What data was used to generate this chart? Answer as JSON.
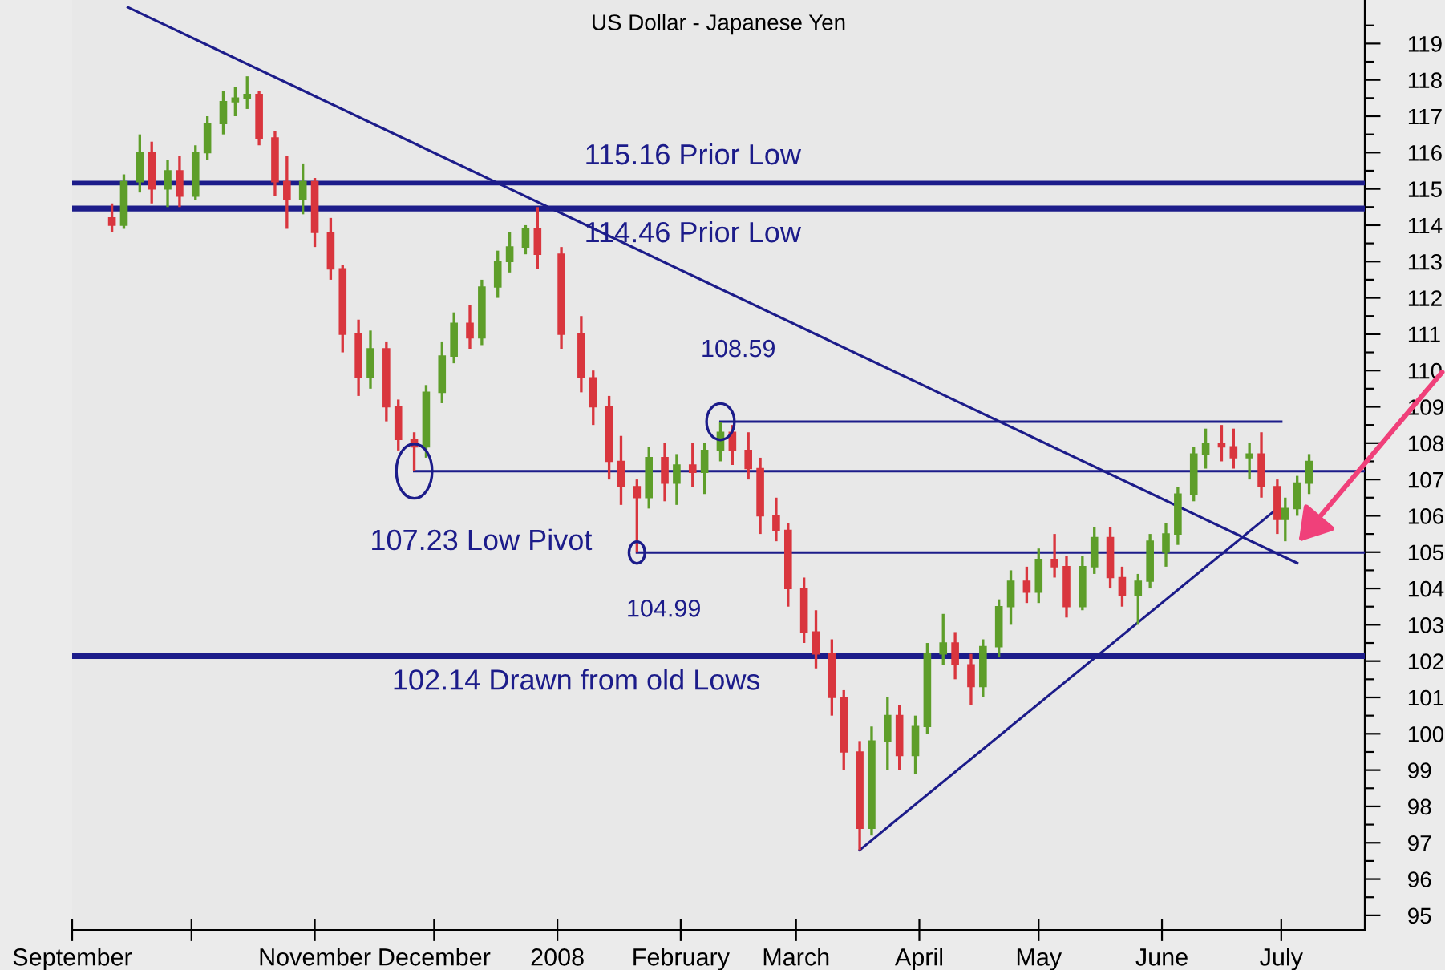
{
  "chart_data": {
    "type": "candlestick",
    "title": "US Dollar - Japanese Yen",
    "x": [
      "2007-09-11",
      "2007-09-14",
      "2007-09-18",
      "2007-09-21",
      "2007-09-25",
      "2007-09-28",
      "2007-10-02",
      "2007-10-05",
      "2007-10-09",
      "2007-10-12",
      "2007-10-15",
      "2007-10-18",
      "2007-10-22",
      "2007-10-25",
      "2007-10-29",
      "2007-11-01",
      "2007-11-05",
      "2007-11-08",
      "2007-11-12",
      "2007-11-15",
      "2007-11-19",
      "2007-11-22",
      "2007-11-26",
      "2007-11-29",
      "2007-12-03",
      "2007-12-06",
      "2007-12-10",
      "2007-12-13",
      "2007-12-17",
      "2007-12-20",
      "2007-12-24",
      "2007-12-27",
      "2008-01-02",
      "2008-01-07",
      "2008-01-10",
      "2008-01-14",
      "2008-01-17",
      "2008-01-21",
      "2008-01-24",
      "2008-01-28",
      "2008-01-31",
      "2008-02-04",
      "2008-02-07",
      "2008-02-11",
      "2008-02-14",
      "2008-02-18",
      "2008-02-21",
      "2008-02-25",
      "2008-02-28",
      "2008-03-03",
      "2008-03-06",
      "2008-03-10",
      "2008-03-13",
      "2008-03-17",
      "2008-03-20",
      "2008-03-24",
      "2008-03-27",
      "2008-03-31",
      "2008-04-03",
      "2008-04-07",
      "2008-04-10",
      "2008-04-14",
      "2008-04-17",
      "2008-04-21",
      "2008-04-24",
      "2008-04-28",
      "2008-05-01",
      "2008-05-05",
      "2008-05-08",
      "2008-05-12",
      "2008-05-15",
      "2008-05-19",
      "2008-05-22",
      "2008-05-26",
      "2008-05-29",
      "2008-06-02",
      "2008-06-05",
      "2008-06-09",
      "2008-06-12",
      "2008-06-16",
      "2008-06-19",
      "2008-06-23",
      "2008-06-26",
      "2008-06-30",
      "2008-07-02",
      "2008-07-05",
      "2008-07-08"
    ],
    "ohlc": [
      [
        114.2,
        114.6,
        113.8,
        114.0
      ],
      [
        114.0,
        115.4,
        113.9,
        115.2
      ],
      [
        115.2,
        116.5,
        114.9,
        116.0
      ],
      [
        116.0,
        116.3,
        114.6,
        115.0
      ],
      [
        115.0,
        115.8,
        114.5,
        115.5
      ],
      [
        115.5,
        115.9,
        114.5,
        114.8
      ],
      [
        114.8,
        116.2,
        114.7,
        116.0
      ],
      [
        116.0,
        117.0,
        115.8,
        116.8
      ],
      [
        116.8,
        117.7,
        116.5,
        117.4
      ],
      [
        117.4,
        117.8,
        117.0,
        117.5
      ],
      [
        117.5,
        118.1,
        117.2,
        117.6
      ],
      [
        117.6,
        117.7,
        116.2,
        116.4
      ],
      [
        116.4,
        116.6,
        114.8,
        115.2
      ],
      [
        115.2,
        115.9,
        113.9,
        114.7
      ],
      [
        114.7,
        115.7,
        114.3,
        115.2
      ],
      [
        115.2,
        115.3,
        113.4,
        113.8
      ],
      [
        113.8,
        114.2,
        112.5,
        112.8
      ],
      [
        112.8,
        112.9,
        110.5,
        111.0
      ],
      [
        111.0,
        111.4,
        109.3,
        109.8
      ],
      [
        109.8,
        111.1,
        109.5,
        110.6
      ],
      [
        110.6,
        110.8,
        108.6,
        109.0
      ],
      [
        109.0,
        109.2,
        107.8,
        108.1
      ],
      [
        108.1,
        108.3,
        107.23,
        107.9
      ],
      [
        107.9,
        109.6,
        107.6,
        109.4
      ],
      [
        109.4,
        110.8,
        109.1,
        110.4
      ],
      [
        110.4,
        111.6,
        110.2,
        111.3
      ],
      [
        111.3,
        111.8,
        110.6,
        110.9
      ],
      [
        110.9,
        112.5,
        110.7,
        112.3
      ],
      [
        112.3,
        113.3,
        112.0,
        113.0
      ],
      [
        113.0,
        113.8,
        112.7,
        113.4
      ],
      [
        113.4,
        114.0,
        113.2,
        113.9
      ],
      [
        113.9,
        114.5,
        112.8,
        113.2
      ],
      [
        113.2,
        113.4,
        110.6,
        111.0
      ],
      [
        111.0,
        111.5,
        109.4,
        109.8
      ],
      [
        109.8,
        110.0,
        108.5,
        109.0
      ],
      [
        109.0,
        109.3,
        107.0,
        107.5
      ],
      [
        107.5,
        108.2,
        106.3,
        106.8
      ],
      [
        106.8,
        107.0,
        104.99,
        106.5
      ],
      [
        106.5,
        107.9,
        106.2,
        107.6
      ],
      [
        107.6,
        108.0,
        106.4,
        106.9
      ],
      [
        106.9,
        107.7,
        106.3,
        107.4
      ],
      [
        107.4,
        108.0,
        106.8,
        107.2
      ],
      [
        107.2,
        108.0,
        106.6,
        107.8
      ],
      [
        107.8,
        108.59,
        107.5,
        108.3
      ],
      [
        108.3,
        108.5,
        107.4,
        107.8
      ],
      [
        107.8,
        108.3,
        107.0,
        107.3
      ],
      [
        107.3,
        107.6,
        105.5,
        106.0
      ],
      [
        106.0,
        106.5,
        105.3,
        105.6
      ],
      [
        105.6,
        105.8,
        103.5,
        104.0
      ],
      [
        104.0,
        104.3,
        102.5,
        102.8
      ],
      [
        102.8,
        103.4,
        101.8,
        102.2
      ],
      [
        102.2,
        102.6,
        100.5,
        101.0
      ],
      [
        101.0,
        101.2,
        99.0,
        99.5
      ],
      [
        99.5,
        99.8,
        96.8,
        97.4
      ],
      [
        97.4,
        100.2,
        97.2,
        99.8
      ],
      [
        99.8,
        101.0,
        99.0,
        100.5
      ],
      [
        100.5,
        100.8,
        99.0,
        99.4
      ],
      [
        99.4,
        100.5,
        98.9,
        100.2
      ],
      [
        100.2,
        102.5,
        100.0,
        102.2
      ],
      [
        102.2,
        103.3,
        101.9,
        102.5
      ],
      [
        102.5,
        102.8,
        101.5,
        101.9
      ],
      [
        101.9,
        102.2,
        100.8,
        101.3
      ],
      [
        101.3,
        102.6,
        101.0,
        102.4
      ],
      [
        102.4,
        103.7,
        102.1,
        103.5
      ],
      [
        103.5,
        104.5,
        103.0,
        104.2
      ],
      [
        104.2,
        104.6,
        103.6,
        103.9
      ],
      [
        103.9,
        105.1,
        103.6,
        104.8
      ],
      [
        104.8,
        105.5,
        104.3,
        104.6
      ],
      [
        104.6,
        104.9,
        103.2,
        103.5
      ],
      [
        103.5,
        104.9,
        103.4,
        104.6
      ],
      [
        104.6,
        105.7,
        104.4,
        105.4
      ],
      [
        105.4,
        105.7,
        104.0,
        104.3
      ],
      [
        104.3,
        104.6,
        103.5,
        103.8
      ],
      [
        103.8,
        104.4,
        103.0,
        104.2
      ],
      [
        104.2,
        105.5,
        104.0,
        105.3
      ],
      [
        105.0,
        105.8,
        104.6,
        105.5
      ],
      [
        105.5,
        106.8,
        105.2,
        106.6
      ],
      [
        106.6,
        107.9,
        106.4,
        107.7
      ],
      [
        107.7,
        108.4,
        107.3,
        108.0
      ],
      [
        108.0,
        108.5,
        107.5,
        107.9
      ],
      [
        107.9,
        108.4,
        107.3,
        107.6
      ],
      [
        107.6,
        108.0,
        107.0,
        107.7
      ],
      [
        107.7,
        108.3,
        106.5,
        106.8
      ],
      [
        106.8,
        107.0,
        105.5,
        105.9
      ],
      [
        105.9,
        106.5,
        105.3,
        106.2
      ],
      [
        106.2,
        107.1,
        106.0,
        106.9
      ],
      [
        106.9,
        107.7,
        106.6,
        107.5
      ]
    ],
    "colors": [
      "#d9363e",
      "#5e9e2a",
      "#5e9e2a",
      "#d9363e",
      "#5e9e2a",
      "#d9363e",
      "#5e9e2a",
      "#5e9e2a",
      "#5e9e2a",
      "#5e9e2a",
      "#5e9e2a",
      "#d9363e",
      "#d9363e",
      "#d9363e",
      "#5e9e2a",
      "#d9363e",
      "#d9363e",
      "#d9363e",
      "#d9363e",
      "#5e9e2a",
      "#d9363e",
      "#d9363e",
      "#d9363e",
      "#5e9e2a",
      "#5e9e2a",
      "#5e9e2a",
      "#d9363e",
      "#5e9e2a",
      "#5e9e2a",
      "#5e9e2a",
      "#5e9e2a",
      "#d9363e",
      "#d9363e",
      "#d9363e",
      "#d9363e",
      "#d9363e",
      "#d9363e",
      "#d9363e",
      "#5e9e2a",
      "#d9363e",
      "#5e9e2a",
      "#d9363e",
      "#5e9e2a",
      "#5e9e2a",
      "#d9363e",
      "#d9363e",
      "#d9363e",
      "#d9363e",
      "#d9363e",
      "#d9363e",
      "#d9363e",
      "#d9363e",
      "#d9363e",
      "#d9363e",
      "#5e9e2a",
      "#5e9e2a",
      "#d9363e",
      "#5e9e2a",
      "#5e9e2a",
      "#5e9e2a",
      "#d9363e",
      "#d9363e",
      "#5e9e2a",
      "#5e9e2a",
      "#5e9e2a",
      "#d9363e",
      "#5e9e2a",
      "#d9363e",
      "#d9363e",
      "#5e9e2a",
      "#5e9e2a",
      "#d9363e",
      "#d9363e",
      "#5e9e2a",
      "#5e9e2a",
      "#5e9e2a",
      "#5e9e2a",
      "#5e9e2a",
      "#5e9e2a",
      "#d9363e",
      "#d9363e",
      "#5e9e2a",
      "#d9363e",
      "#d9363e",
      "#5e9e2a",
      "#5e9e2a",
      "#5e9e2a"
    ],
    "series": [
      {
        "type": "line",
        "color": "#1c1c8a",
        "x": [
          "2007-09-15",
          "2008-07-05"
        ],
        "values": [
          120.0,
          104.7
        ]
      },
      {
        "type": "line",
        "color": "#1c1c8a",
        "x": [
          "2008-03-17",
          "2008-06-30"
        ],
        "values": [
          96.8,
          106.2
        ]
      },
      {
        "type": "line",
        "color": "#1c1c8a",
        "x": [
          "2007-11-26",
          "2008-07-22"
        ],
        "values": [
          107.23,
          107.23
        ]
      },
      {
        "type": "line",
        "color": "#1c1c8a",
        "x": [
          "2008-02-11",
          "2008-07-01"
        ],
        "values": [
          108.59,
          108.59
        ]
      },
      {
        "type": "line",
        "color": "#1c1c8a",
        "x": [
          "2008-01-21",
          "2008-07-22"
        ],
        "values": [
          104.99,
          104.99
        ]
      }
    ],
    "ref_lines": [
      {
        "axis": "y",
        "value": 115.16,
        "label": "115.16 Prior Low",
        "color": "#1c1c8a"
      },
      {
        "axis": "y",
        "value": 114.46,
        "label": "114.46 Prior Low",
        "color": "#1c1c8a"
      },
      {
        "axis": "y",
        "value": 102.14,
        "label": "102.14 Drawn from old Lows",
        "color": "#1c1c8a"
      }
    ],
    "annotations": [
      {
        "text": "107.23 Low Pivot",
        "x": "2007-11-26",
        "y": 107.23
      },
      {
        "text": "108.59",
        "x": "2008-02-11",
        "y": 108.59
      },
      {
        "text": "104.99",
        "x": "2008-01-21",
        "y": 104.99
      }
    ],
    "xlim": [
      "2007-09-01",
      "2008-07-22"
    ],
    "xticks": [
      {
        "value": "2007-09-01",
        "label": "September"
      },
      {
        "value": "2007-10-01",
        "label": null
      },
      {
        "value": "2007-11-01",
        "label": "November"
      },
      {
        "value": "2007-12-01",
        "label": "December"
      },
      {
        "value": "2008-01-01",
        "label": "2008"
      },
      {
        "value": "2008-02-01",
        "label": "February"
      },
      {
        "value": "2008-03-01",
        "label": "March"
      },
      {
        "value": "2008-04-01",
        "label": "April"
      },
      {
        "value": "2008-05-01",
        "label": "May"
      },
      {
        "value": "2008-06-01",
        "label": "June"
      },
      {
        "value": "2008-07-01",
        "label": "July"
      }
    ],
    "ylim": [
      94.6,
      120.2
    ],
    "yticks": [
      95,
      {
        "value": 95.5,
        "label": null
      },
      96,
      {
        "value": 96.5,
        "label": null
      },
      97,
      {
        "value": 97.5,
        "label": null
      },
      98,
      {
        "value": 98.5,
        "label": null
      },
      99,
      {
        "value": 99.5,
        "label": null
      },
      100,
      {
        "value": 100.5,
        "label": null
      },
      101,
      {
        "value": 101.5,
        "label": null
      },
      102,
      {
        "value": 102.5,
        "label": null
      },
      103,
      {
        "value": 103.5,
        "label": null
      },
      104,
      {
        "value": 104.5,
        "label": null
      },
      105,
      {
        "value": 105.5,
        "label": null
      },
      106,
      {
        "value": 106.5,
        "label": null
      },
      107,
      {
        "value": 107.5,
        "label": null
      },
      108,
      {
        "value": 108.5,
        "label": null
      },
      109,
      {
        "value": 109.5,
        "label": null
      },
      110,
      {
        "value": 110.5,
        "label": null
      },
      111,
      {
        "value": 111.5,
        "label": null
      },
      112,
      {
        "value": 112.5,
        "label": null
      },
      113,
      {
        "value": 113.5,
        "label": null
      },
      114,
      {
        "value": 114.5,
        "label": null
      },
      115,
      {
        "value": 115.5,
        "label": null
      },
      116,
      {
        "value": 116.5,
        "label": null
      },
      117,
      {
        "value": 117.5,
        "label": null
      },
      118,
      {
        "value": 118.5,
        "label": null
      },
      119,
      {
        "value": 119.5,
        "label": null
      }
    ],
    "grid": false,
    "legend": false
  }
}
